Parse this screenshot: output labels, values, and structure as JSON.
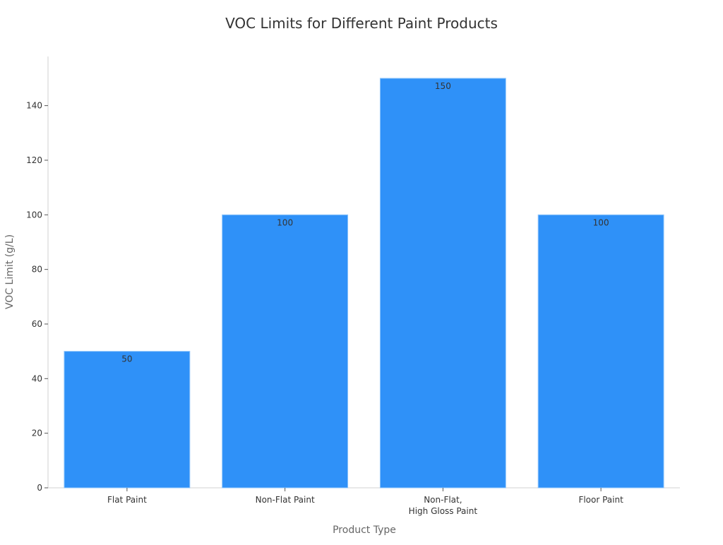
{
  "chart_data": {
    "type": "bar",
    "title": "VOC Limits for Different Paint Products",
    "xlabel": "Product Type",
    "ylabel": "VOC Limit (g/L)",
    "categories": [
      [
        "Flat Paint"
      ],
      [
        "Non-Flat Paint"
      ],
      [
        "Non-Flat,",
        "High Gloss Paint"
      ],
      [
        "Floor Paint"
      ]
    ],
    "values": [
      50,
      100,
      150,
      100
    ],
    "data_labels": [
      "50",
      "100",
      "150",
      "100"
    ],
    "ylim": [
      0,
      158
    ],
    "yticks": [
      0,
      20,
      40,
      60,
      80,
      100,
      120,
      140
    ],
    "grid": false,
    "legend": "none",
    "colors": {
      "bar": "#2F91F8",
      "bar_edge": "#8EC5FB",
      "axis": "#D0D0D0",
      "text": "#333333",
      "label": "#666666"
    }
  }
}
